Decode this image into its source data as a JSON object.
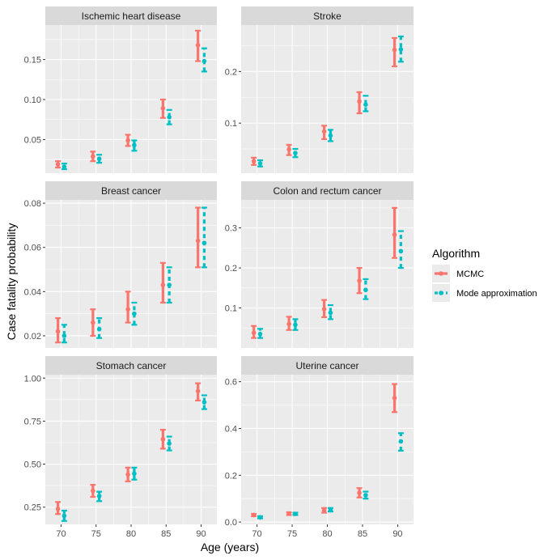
{
  "chart_data": {
    "type": "errorbar-facets",
    "xlabel": "Age (years)",
    "ylabel": "Case fatality probability",
    "x": [
      70,
      75,
      80,
      85,
      90
    ],
    "legend": {
      "title": "Algorithm",
      "position": "right",
      "entries": [
        {
          "name": "MCMC",
          "color": "#F8766D"
        },
        {
          "name": "Mode approximation",
          "color": "#00BFC4"
        }
      ]
    },
    "panels": [
      {
        "title": "Ischemic heart disease",
        "ylim": [
          0.008,
          0.193
        ],
        "yticks": [
          0.05,
          0.1,
          0.15
        ],
        "ytick_labels": [
          "0.05",
          "0.10",
          "0.15"
        ],
        "series": [
          {
            "name": "MCMC",
            "mid": [
              0.019,
              0.029,
              0.049,
              0.089,
              0.168
            ],
            "lo": [
              0.015,
              0.023,
              0.042,
              0.077,
              0.148
            ],
            "hi": [
              0.023,
              0.035,
              0.056,
              0.1,
              0.186
            ]
          },
          {
            "name": "Mode approximation",
            "mid": [
              0.016,
              0.026,
              0.043,
              0.078,
              0.148
            ],
            "lo": [
              0.013,
              0.021,
              0.036,
              0.069,
              0.135
            ],
            "hi": [
              0.02,
              0.031,
              0.049,
              0.087,
              0.164
            ]
          }
        ]
      },
      {
        "title": "Stroke",
        "ylim": [
          0.003,
          0.29
        ],
        "yticks": [
          0.1,
          0.2
        ],
        "ytick_labels": [
          "0.1",
          "0.2"
        ],
        "series": [
          {
            "name": "MCMC",
            "mid": [
              0.026,
              0.049,
              0.084,
              0.142,
              0.242
            ],
            "lo": [
              0.019,
              0.038,
              0.069,
              0.119,
              0.21
            ],
            "hi": [
              0.033,
              0.058,
              0.095,
              0.16,
              0.265
            ]
          },
          {
            "name": "Mode approximation",
            "mid": [
              0.022,
              0.042,
              0.076,
              0.136,
              0.243
            ],
            "lo": [
              0.016,
              0.034,
              0.065,
              0.123,
              0.219
            ],
            "hi": [
              0.028,
              0.05,
              0.087,
              0.153,
              0.268
            ]
          }
        ]
      },
      {
        "title": "Breast cancer",
        "ylim": [
          0.0145,
          0.0815
        ],
        "yticks": [
          0.02,
          0.04,
          0.06,
          0.08
        ],
        "ytick_labels": [
          "0.02",
          "0.04",
          "0.06",
          "0.08"
        ],
        "series": [
          {
            "name": "MCMC",
            "mid": [
              0.022,
              0.026,
              0.032,
              0.043,
              0.063
            ],
            "lo": [
              0.017,
              0.02,
              0.026,
              0.035,
              0.051
            ],
            "hi": [
              0.028,
              0.032,
              0.04,
              0.053,
              0.078
            ]
          },
          {
            "name": "Mode approximation",
            "mid": [
              0.02,
              0.023,
              0.03,
              0.043,
              0.062
            ],
            "lo": [
              0.017,
              0.019,
              0.025,
              0.035,
              0.051
            ],
            "hi": [
              0.025,
              0.028,
              0.035,
              0.051,
              0.078
            ]
          }
        ]
      },
      {
        "title": "Colon and rectum cancer",
        "ylim": [
          0.0,
          0.37
        ],
        "yticks": [
          0.1,
          0.2,
          0.3
        ],
        "ytick_labels": [
          "0.1",
          "0.2",
          "0.3"
        ],
        "series": [
          {
            "name": "MCMC",
            "mid": [
              0.038,
              0.06,
              0.097,
              0.168,
              0.283
            ],
            "lo": [
              0.025,
              0.045,
              0.077,
              0.137,
              0.225
            ],
            "hi": [
              0.055,
              0.078,
              0.12,
              0.2,
              0.35
            ]
          },
          {
            "name": "Mode approximation",
            "mid": [
              0.035,
              0.058,
              0.088,
              0.145,
              0.242
            ],
            "lo": [
              0.025,
              0.045,
              0.072,
              0.122,
              0.2
            ],
            "hi": [
              0.048,
              0.072,
              0.107,
              0.172,
              0.292
            ]
          }
        ]
      },
      {
        "title": "Stomach cancer",
        "ylim": [
          0.15,
          1.02
        ],
        "yticks": [
          0.25,
          0.5,
          0.75,
          1.0
        ],
        "ytick_labels": [
          "0.25",
          "0.50",
          "0.75",
          "1.00"
        ],
        "series": [
          {
            "name": "MCMC",
            "mid": [
              0.24,
              0.345,
              0.44,
              0.645,
              0.925
            ],
            "lo": [
              0.21,
              0.31,
              0.4,
              0.59,
              0.87
            ],
            "hi": [
              0.28,
              0.38,
              0.48,
              0.7,
              0.97
            ]
          },
          {
            "name": "Mode approximation",
            "mid": [
              0.2,
              0.315,
              0.445,
              0.62,
              0.86
            ],
            "lo": [
              0.17,
              0.285,
              0.41,
              0.58,
              0.82
            ],
            "hi": [
              0.23,
              0.34,
              0.48,
              0.66,
              0.9
            ]
          }
        ]
      },
      {
        "title": "Uterine cancer",
        "ylim": [
          -0.01,
          0.63
        ],
        "yticks": [
          0.0,
          0.2,
          0.4,
          0.6
        ],
        "ytick_labels": [
          "0.0",
          "0.2",
          "0.4",
          "0.6"
        ],
        "series": [
          {
            "name": "MCMC",
            "mid": [
              0.03,
              0.036,
              0.05,
              0.125,
              0.53
            ],
            "lo": [
              0.025,
              0.03,
              0.04,
              0.105,
              0.47
            ],
            "hi": [
              0.035,
              0.042,
              0.06,
              0.145,
              0.59
            ]
          },
          {
            "name": "Mode approximation",
            "mid": [
              0.02,
              0.035,
              0.052,
              0.115,
              0.345
            ],
            "lo": [
              0.016,
              0.03,
              0.045,
              0.1,
              0.305
            ],
            "hi": [
              0.025,
              0.04,
              0.06,
              0.13,
              0.38
            ]
          }
        ]
      }
    ]
  }
}
